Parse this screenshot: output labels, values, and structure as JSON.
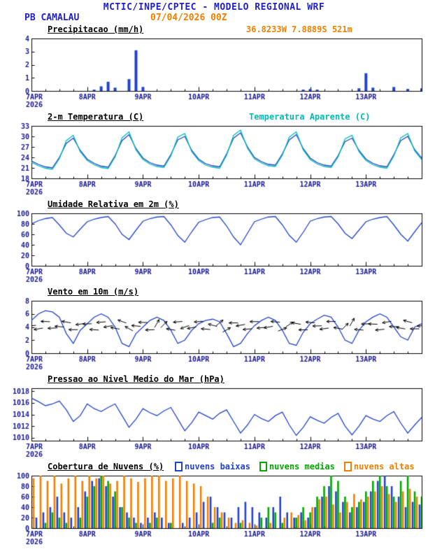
{
  "header": {
    "title": "MCTIC/INPE/CPTEC - MODELO REGIONAL WRF",
    "station": "PB CAMALAU",
    "run": "07/04/2026 00Z",
    "location": "36.8233W 7.8889S 521m"
  },
  "colors": {
    "header_blue": "#2020c8",
    "orange": "#f08000",
    "cyan": "#00bcb4",
    "line_blue": "#2244cc",
    "green": "#00aa00",
    "navy_ticks": "#16168c",
    "black": "#000000"
  },
  "x_axis": {
    "step_hours": 3,
    "total_hours": 168,
    "major_every": 24,
    "minor_every": 6,
    "tick_labels": [
      "7APR",
      "8APR",
      "9APR",
      "10APR",
      "11APR",
      "12APR",
      "13APR"
    ],
    "year_label": "2026"
  },
  "chart_data": [
    {
      "type": "bar",
      "title": "Precipitacao (mm/h)",
      "ylim": [
        0,
        4
      ],
      "yticks": [
        0,
        1,
        2,
        3,
        4
      ],
      "color": "#2244cc",
      "values": [
        0,
        0,
        0,
        0,
        0,
        0,
        0,
        0,
        0,
        0.1,
        0.35,
        0.7,
        0.25,
        0,
        0.9,
        3.1,
        0.3,
        0,
        0,
        0,
        0,
        0,
        0,
        0,
        0,
        0,
        0,
        0,
        0,
        0,
        0,
        0,
        0,
        0,
        0,
        0,
        0,
        0,
        0,
        0.1,
        0.15,
        0.1,
        0,
        0,
        0,
        0,
        0,
        0.2,
        1.35,
        0.25,
        0,
        0,
        0.3,
        0,
        0.15,
        0,
        0.2
      ]
    },
    {
      "type": "line",
      "title": "2-m Temperatura (C)",
      "ylim": [
        18,
        33
      ],
      "yticks": [
        18,
        21,
        24,
        27,
        30,
        33
      ],
      "series": [
        {
          "name": "2-m Temperatura (C)",
          "color": "#2244cc",
          "values": [
            23.0,
            22.0,
            21.3,
            21.0,
            24.0,
            28.0,
            29.5,
            26.0,
            23.5,
            22.3,
            21.5,
            21.2,
            24.5,
            28.8,
            30.5,
            26.5,
            23.8,
            22.5,
            21.8,
            21.5,
            24.8,
            29.0,
            30.0,
            26.0,
            23.5,
            22.2,
            21.6,
            21.3,
            25.0,
            29.5,
            31.0,
            27.0,
            24.0,
            22.8,
            22.0,
            21.8,
            25.0,
            29.0,
            30.5,
            26.5,
            23.8,
            22.5,
            21.8,
            21.5,
            24.5,
            28.5,
            29.5,
            26.0,
            23.5,
            22.3,
            21.6,
            21.3,
            24.8,
            28.8,
            30.0,
            26.2,
            23.8
          ]
        },
        {
          "name": "Temperatura Aparente (C)",
          "color": "#00bcb4",
          "values": [
            22.6,
            21.6,
            20.9,
            20.6,
            23.6,
            28.8,
            30.3,
            25.6,
            23.1,
            21.9,
            21.1,
            20.8,
            24.1,
            29.6,
            31.3,
            26.1,
            23.4,
            22.1,
            21.4,
            21.1,
            24.4,
            29.8,
            30.8,
            25.6,
            23.1,
            21.8,
            21.2,
            20.9,
            24.6,
            30.3,
            31.8,
            26.6,
            23.6,
            22.4,
            21.6,
            21.4,
            24.6,
            29.8,
            31.3,
            26.1,
            23.4,
            22.1,
            21.4,
            21.1,
            24.1,
            29.3,
            30.3,
            25.6,
            23.1,
            21.9,
            21.2,
            20.9,
            24.4,
            29.6,
            30.8,
            25.8,
            23.4
          ]
        }
      ]
    },
    {
      "type": "line",
      "title": "Umidade Relativa em 2m (%)",
      "ylim": [
        0,
        100
      ],
      "yticks": [
        0,
        20,
        40,
        60,
        80,
        100
      ],
      "series": [
        {
          "name": "Umidade Relativa",
          "color": "#2244cc",
          "values": [
            80,
            86,
            90,
            92,
            78,
            62,
            55,
            70,
            84,
            89,
            92,
            94,
            80,
            60,
            50,
            68,
            85,
            90,
            93,
            94,
            78,
            58,
            45,
            65,
            83,
            88,
            92,
            93,
            76,
            55,
            40,
            62,
            84,
            89,
            93,
            94,
            78,
            58,
            45,
            64,
            85,
            90,
            93,
            94,
            80,
            62,
            52,
            68,
            84,
            89,
            92,
            94,
            78,
            60,
            47,
            65,
            82
          ]
        }
      ]
    },
    {
      "type": "wind",
      "title": "Vento em 10m (m/s)",
      "ylim": [
        0,
        8
      ],
      "yticks": [
        0,
        2,
        4,
        6,
        8
      ],
      "series": [
        {
          "name": "Vento em 10m",
          "color": "#2244cc",
          "values": [
            5.0,
            6.0,
            6.5,
            6.3,
            5.5,
            3.0,
            1.5,
            3.5,
            4.5,
            5.5,
            6.0,
            5.5,
            4.0,
            1.5,
            1.0,
            3.0,
            4.0,
            5.0,
            5.5,
            5.0,
            3.5,
            1.5,
            2.0,
            3.5,
            4.5,
            5.0,
            5.2,
            4.8,
            3.0,
            1.0,
            1.5,
            3.0,
            4.2,
            5.0,
            5.5,
            5.0,
            3.5,
            1.5,
            1.2,
            3.2,
            4.5,
            5.2,
            5.8,
            5.5,
            4.0,
            2.0,
            1.5,
            3.5,
            4.8,
            5.5,
            6.0,
            5.5,
            4.0,
            2.5,
            2.0,
            4.0,
            4.5
          ]
        }
      ],
      "arrows": {
        "color": "#000000",
        "y_level": 4.2,
        "angles": [
          185,
          190,
          178,
          182,
          175,
          170,
          180,
          188,
          182,
          176,
          185,
          190,
          170,
          160,
          150,
          175,
          178,
          182,
          60,
          45,
          170,
          185,
          200,
          190,
          185,
          175,
          165,
          40,
          30,
          180,
          190,
          185,
          180,
          185,
          190,
          175,
          20,
          35,
          170,
          180,
          175,
          182,
          188,
          180,
          170,
          45,
          60,
          175,
          182,
          178,
          185,
          190,
          180,
          170,
          165,
          180,
          185
        ]
      }
    },
    {
      "type": "line",
      "title": "Pressao ao Nivel Medio do Mar (hPa)",
      "ylim": [
        1009.5,
        1018.5
      ],
      "yticks": [
        1010,
        1012,
        1014,
        1016,
        1018
      ],
      "series": [
        {
          "name": "Pressao ao Nivel Medio do Mar",
          "color": "#2244cc",
          "values": [
            1016.8,
            1016.2,
            1015.5,
            1015.8,
            1016.3,
            1014.8,
            1012.8,
            1013.8,
            1015.8,
            1015.0,
            1014.5,
            1015.2,
            1015.8,
            1013.8,
            1011.8,
            1013.2,
            1015.0,
            1014.3,
            1013.8,
            1014.6,
            1015.2,
            1013.2,
            1011.2,
            1012.6,
            1014.4,
            1013.8,
            1013.2,
            1014.2,
            1014.8,
            1012.8,
            1010.8,
            1012.2,
            1014.0,
            1013.3,
            1012.8,
            1013.8,
            1014.4,
            1012.2,
            1010.4,
            1011.8,
            1013.6,
            1013.0,
            1012.5,
            1013.5,
            1014.2,
            1012.0,
            1010.5,
            1012.0,
            1013.8,
            1013.2,
            1012.8,
            1013.8,
            1014.5,
            1012.5,
            1010.8,
            1012.2,
            1013.5
          ]
        }
      ]
    },
    {
      "type": "bars3",
      "title": "Cobertura de Nuvens (%)",
      "ylim": [
        0,
        100
      ],
      "yticks": [
        0,
        20,
        40,
        60,
        80,
        100
      ],
      "series": [
        {
          "name": "nuvens baixas",
          "color": "#2244cc",
          "values": [
            10,
            20,
            30,
            40,
            60,
            30,
            20,
            40,
            70,
            90,
            95,
            80,
            60,
            40,
            30,
            20,
            10,
            20,
            30,
            20,
            10,
            0,
            10,
            20,
            30,
            50,
            60,
            40,
            30,
            20,
            40,
            50,
            40,
            30,
            20,
            40,
            60,
            30,
            20,
            30,
            20,
            40,
            60,
            80,
            70,
            50,
            30,
            40,
            50,
            70,
            90,
            100,
            80,
            60,
            40,
            50,
            45
          ]
        },
        {
          "name": "nuvens medias",
          "color": "#00aa00",
          "values": [
            0,
            0,
            10,
            30,
            20,
            10,
            0,
            20,
            60,
            80,
            100,
            90,
            70,
            40,
            20,
            10,
            0,
            10,
            20,
            0,
            10,
            0,
            0,
            0,
            0,
            0,
            10,
            20,
            0,
            0,
            10,
            0,
            0,
            20,
            40,
            30,
            10,
            0,
            20,
            40,
            30,
            60,
            80,
            100,
            90,
            60,
            40,
            50,
            70,
            90,
            100,
            80,
            60,
            90,
            100,
            70,
            60
          ]
        },
        {
          "name": "nuvens altas",
          "color": "#f08000",
          "values": [
            95,
            100,
            90,
            100,
            85,
            95,
            100,
            90,
            100,
            95,
            100,
            85,
            90,
            100,
            95,
            88,
            95,
            100,
            100,
            90,
            95,
            100,
            90,
            85,
            80,
            60,
            40,
            30,
            20,
            10,
            15,
            10,
            5,
            0,
            10,
            0,
            20,
            30,
            25,
            15,
            40,
            55,
            60,
            45,
            30,
            50,
            65,
            55,
            60,
            70,
            80,
            65,
            50,
            70,
            75,
            60,
            55
          ]
        }
      ]
    }
  ]
}
